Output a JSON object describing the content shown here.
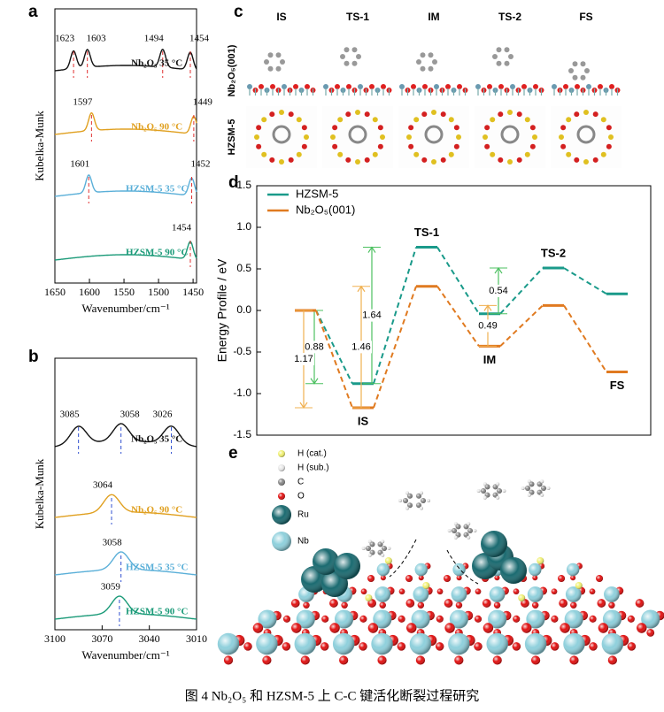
{
  "caption": "图 4 Nb₂O₅ 和 HZSM-5 上 C-C 键活化断裂过程研究",
  "panels": {
    "a": {
      "label": "a",
      "ylabel": "Kubelka-Munk",
      "xlabel": "Wavenumber/cm⁻¹",
      "xlim": [
        1650,
        1445
      ],
      "xticks": [
        1650,
        1600,
        1550,
        1500,
        1450
      ],
      "dash_color": "#e03030",
      "traces": [
        {
          "name": "Nb₂O₅ 35 °C",
          "color": "#111111",
          "peaks": [
            1623,
            1603,
            1494,
            1454
          ]
        },
        {
          "name": "Nb₂O₅ 90 °C",
          "color": "#e0a020",
          "peaks": [
            1597,
            1449
          ]
        },
        {
          "name": "HZSM-5 35 °C",
          "color": "#5aafd8",
          "peaks": [
            1601,
            1452
          ]
        },
        {
          "name": "HZSM-5 90 °C",
          "color": "#1a9a78",
          "peaks": [
            1454
          ]
        }
      ]
    },
    "b": {
      "label": "b",
      "ylabel": "Kubelka-Munk",
      "xlabel": "Wavenumber/cm⁻¹",
      "xlim": [
        3100,
        3010
      ],
      "xticks": [
        3100,
        3070,
        3040,
        3010
      ],
      "dash_color": "#3050d0",
      "traces": [
        {
          "name": "Nb₂O₅ 35 °C",
          "color": "#111111",
          "peaks": [
            3085,
            3058,
            3026
          ]
        },
        {
          "name": "Nb₂O₅ 90 °C",
          "color": "#e0a020",
          "peaks": [
            3064
          ]
        },
        {
          "name": "HZSM-5 35 °C",
          "color": "#5aafd8",
          "peaks": [
            3058
          ]
        },
        {
          "name": "HZSM-5 90 °C",
          "color": "#1a9a78",
          "peaks": [
            3059
          ]
        }
      ]
    },
    "c": {
      "label": "c",
      "columns": [
        "IS",
        "TS-1",
        "IM",
        "TS-2",
        "FS"
      ],
      "rows": [
        "Nb₂O₅(001)",
        "HZSM-5"
      ]
    },
    "d": {
      "label": "d",
      "chart_data": {
        "type": "line",
        "ylabel": "Energy Profile / eV",
        "categories": [
          null,
          "IS",
          "TS-1",
          "IM",
          "TS-2",
          "FS"
        ],
        "ylim": [
          -1.5,
          1.5
        ],
        "yticks": [
          -1.5,
          {
            "value": -1,
            "label": "-1.0"
          },
          -0.5,
          {
            "value": 0,
            "label": "0.0"
          },
          0.5,
          {
            "value": 1,
            "label": "1.0"
          },
          1.5
        ],
        "legend": "upper left",
        "series": [
          {
            "name": "HZSM-5",
            "color": "#1a9a8a",
            "barrier_color": "#4cc060",
            "values": [
              0,
              -0.88,
              0.76,
              -0.04,
              0.51,
              0.2
            ],
            "barriers": [
              0.88,
              1.64,
              null,
              0.54,
              null
            ]
          },
          {
            "name": "Nb₂O₅(001)",
            "color": "#e07a20",
            "barrier_color": "#f0b050",
            "values": [
              0,
              -1.17,
              0.29,
              -0.43,
              0.06,
              -0.74
            ],
            "barriers": [
              1.17,
              1.46,
              null,
              0.49,
              null
            ]
          }
        ]
      }
    },
    "e": {
      "label": "e",
      "legend": [
        {
          "name": "H (cat.)",
          "color": "#f0f070"
        },
        {
          "name": "H (sub.)",
          "color": "#e8e8e8"
        },
        {
          "name": "C",
          "color": "#888888"
        },
        {
          "name": "O",
          "color": "#e01010"
        },
        {
          "name": "Ru",
          "color": "#1a6a70"
        },
        {
          "name": "Nb",
          "color": "#8fd0dc"
        }
      ]
    }
  }
}
